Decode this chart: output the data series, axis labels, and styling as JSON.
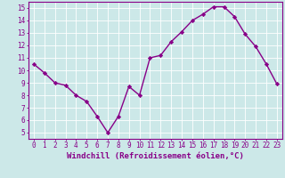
{
  "x": [
    0,
    1,
    2,
    3,
    4,
    5,
    6,
    7,
    8,
    9,
    10,
    11,
    12,
    13,
    14,
    15,
    16,
    17,
    18,
    19,
    20,
    21,
    22,
    23
  ],
  "y": [
    10.5,
    9.8,
    9.0,
    8.8,
    8.0,
    7.5,
    6.3,
    5.0,
    6.3,
    8.7,
    8.0,
    11.0,
    11.2,
    12.3,
    13.1,
    14.0,
    14.5,
    15.1,
    15.1,
    14.3,
    12.9,
    11.9,
    10.5,
    8.9
  ],
  "line_color": "#880088",
  "marker": "D",
  "marker_size": 2.2,
  "line_width": 1.0,
  "bg_color": "#cce8e8",
  "grid_color": "#aacccc",
  "xlabel": "Windchill (Refroidissement éolien,°C)",
  "ylabel": "",
  "xlim": [
    -0.5,
    23.5
  ],
  "ylim": [
    4.5,
    15.5
  ],
  "yticks": [
    5,
    6,
    7,
    8,
    9,
    10,
    11,
    12,
    13,
    14,
    15
  ],
  "xticks": [
    0,
    1,
    2,
    3,
    4,
    5,
    6,
    7,
    8,
    9,
    10,
    11,
    12,
    13,
    14,
    15,
    16,
    17,
    18,
    19,
    20,
    21,
    22,
    23
  ],
  "tick_label_size": 5.5,
  "xlabel_size": 6.5,
  "axis_label_color": "#880088",
  "tick_color": "#880088",
  "spine_color": "#880088",
  "grid_color_white": "#ffffff"
}
